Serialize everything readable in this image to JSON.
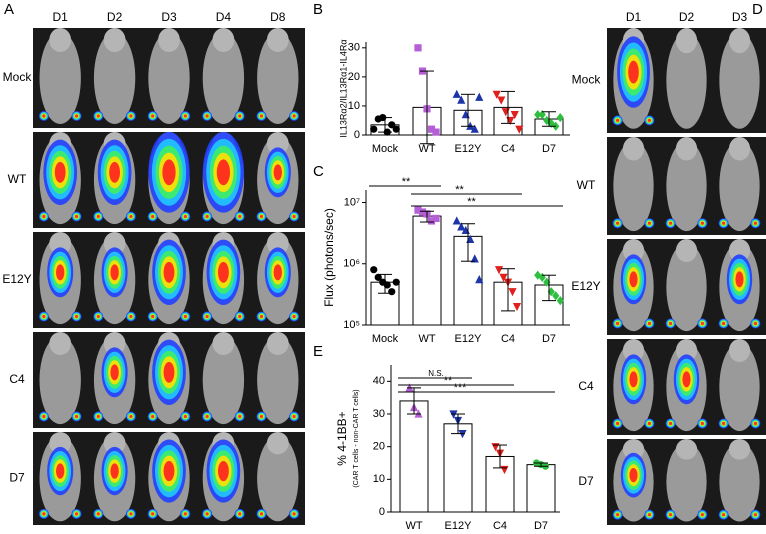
{
  "panels": {
    "a": "A",
    "b": "B",
    "c": "C",
    "d": "D",
    "e": "E"
  },
  "panel_a": {
    "columns": [
      "D1",
      "D2",
      "D3",
      "D4",
      "D8"
    ],
    "rows": [
      "Mock",
      "WT",
      "E12Y",
      "C4",
      "D7"
    ]
  },
  "panel_d": {
    "columns": [
      "D1",
      "D2",
      "D3"
    ],
    "rows": [
      "Mock",
      "WT",
      "E12Y",
      "C4",
      "D7"
    ]
  },
  "chart_data": [
    {
      "type": "bar",
      "ylabel": "IL13Rα2/IL13Rα1-IL4Rα",
      "categories": [
        "Mock",
        "WT",
        "E12Y",
        "C4",
        "D7"
      ],
      "values": [
        3.5,
        9.5,
        8.5,
        9.5,
        5.5
      ],
      "errors": [
        2.5,
        12.5,
        5.5,
        5.5,
        2.5
      ],
      "points": [
        [
          2,
          5.5,
          6,
          1,
          3.5,
          2
        ],
        [
          30,
          22,
          9,
          2,
          1
        ],
        [
          14,
          12,
          7,
          3,
          2,
          13
        ],
        [
          14,
          12,
          8,
          5,
          7,
          2
        ],
        [
          7,
          7,
          5,
          4,
          3,
          6
        ]
      ],
      "colors": [
        "#000000",
        "#b45fd6",
        "#1d35a8",
        "#e0201c",
        "#2fbf40"
      ],
      "markers": [
        "circle",
        "square",
        "triangle",
        "triangle-down",
        "diamond"
      ],
      "ylim": [
        0,
        32
      ],
      "yticks": [
        0,
        10,
        20,
        30
      ]
    },
    {
      "type": "bar",
      "ylabel": "Flux (photons/sec)",
      "log": true,
      "categories": [
        "Mock",
        "WT",
        "E12Y",
        "C4",
        "D7"
      ],
      "values": [
        500000,
        6000000,
        2800000,
        500000,
        450000
      ],
      "errors": [
        170000,
        1200000,
        1700000,
        330000,
        200000
      ],
      "points": [
        [
          800000,
          600000,
          500000,
          450000,
          350000,
          500000
        ],
        [
          7500000,
          7000000,
          6500000,
          5000000,
          5500000
        ],
        [
          5000000,
          4000000,
          3500000,
          2500000,
          1200000,
          550000
        ],
        [
          800000,
          600000,
          500000,
          350000,
          200000
        ],
        [
          650000,
          600000,
          500000,
          350000,
          300000,
          250000
        ]
      ],
      "colors": [
        "#000000",
        "#b45fd6",
        "#1d35a8",
        "#e0201c",
        "#2fbf40"
      ],
      "markers": [
        "circle",
        "square",
        "triangle",
        "triangle-down",
        "diamond"
      ],
      "ylim": [
        100000,
        16000000
      ],
      "yticks": [
        {
          "value": 100000,
          "label": "10⁵"
        },
        {
          "value": 1000000,
          "label": "10⁶"
        },
        {
          "value": 10000000,
          "label": "10⁷"
        }
      ],
      "significance": [
        {
          "label": "**",
          "between": [
            0,
            1
          ]
        },
        {
          "label": "**",
          "between": [
            1,
            3
          ]
        },
        {
          "label": "**",
          "between": [
            1,
            4
          ]
        }
      ]
    },
    {
      "type": "bar",
      "ylabel": "% 4-1BB+",
      "ysublabel": "(CAR T cells - non-CAR T cells)",
      "categories": [
        "WT",
        "E12Y",
        "C4",
        "D7"
      ],
      "values": [
        34,
        27,
        17,
        14.5
      ],
      "errors": [
        4,
        3,
        3.5,
        0.5
      ],
      "points": [
        [
          38,
          32,
          30
        ],
        [
          30,
          28,
          24
        ],
        [
          20,
          18,
          13
        ],
        [
          15,
          14.5,
          14
        ]
      ],
      "colors": [
        "#b45fd6",
        "#1d35a8",
        "#e0201c",
        "#2fbf40"
      ],
      "markers": [
        "triangle",
        "triangle-down",
        "triangle-down",
        "circle"
      ],
      "ylim": [
        0,
        45
      ],
      "yticks": [
        0,
        10,
        20,
        30,
        40
      ],
      "significance": [
        {
          "label": "N.S.",
          "between": [
            0,
            1
          ]
        },
        {
          "label": "**",
          "between": [
            0,
            2
          ]
        },
        {
          "label": "***",
          "between": [
            0,
            3
          ]
        }
      ]
    }
  ]
}
